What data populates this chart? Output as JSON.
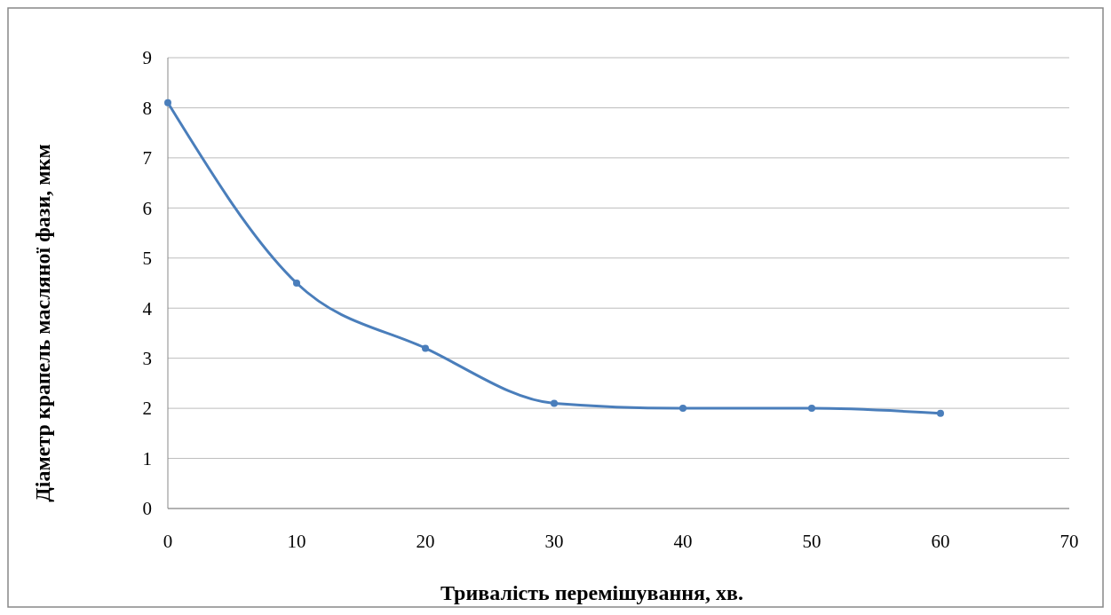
{
  "chart_data": {
    "type": "line",
    "xlabel": "Тривалість перемішування, хв.",
    "ylabel": "Діаметр  крапель масляної фази, мкм",
    "x": [
      0,
      10,
      20,
      30,
      40,
      50,
      60
    ],
    "series": [
      {
        "color": "#4a7ebb",
        "values": [
          8.1,
          4.5,
          3.2,
          2.1,
          2.0,
          2.0,
          1.9
        ]
      }
    ],
    "xlim": [
      0,
      70
    ],
    "xticks": [
      0,
      10,
      20,
      30,
      40,
      50,
      60,
      70
    ],
    "ylim": [
      0,
      9
    ],
    "yticks": [
      0,
      1,
      2,
      3,
      4,
      5,
      6,
      7,
      8,
      9
    ],
    "grid": "y",
    "marker": "circle",
    "line_style": "solid"
  }
}
